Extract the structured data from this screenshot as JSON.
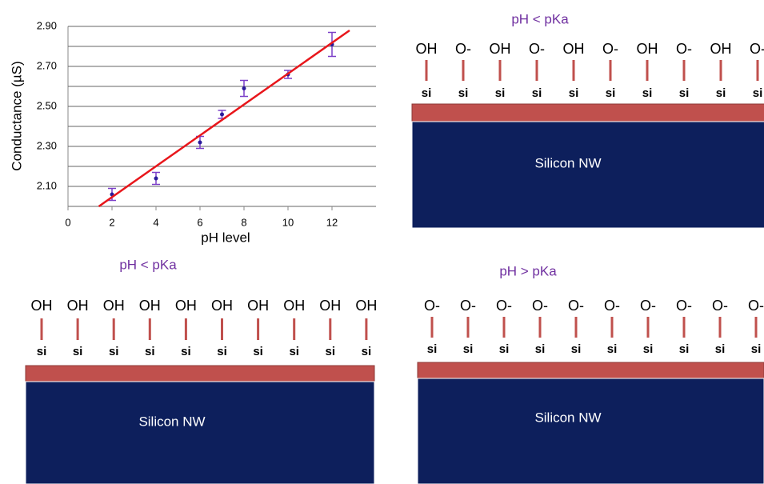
{
  "chart_data": {
    "type": "scatter",
    "x_label": "pH level",
    "y_label": "Conductance (µS)",
    "x": [
      2,
      4,
      6,
      7,
      8,
      10,
      12
    ],
    "values": [
      2.06,
      2.14,
      2.32,
      2.46,
      2.59,
      2.66,
      2.81
    ],
    "errors": [
      0.03,
      0.03,
      0.03,
      0.02,
      0.04,
      0.02,
      0.06
    ],
    "color": "#2a1a9a",
    "error_color": "#7b3fc8",
    "xlim": [
      0,
      14
    ],
    "xticks": [
      0,
      2,
      4,
      6,
      8,
      10,
      12
    ],
    "ylim": [
      2.0,
      2.9
    ],
    "yticks": [
      {
        "value": 2.1,
        "label": "2.10"
      },
      {
        "value": 2.3,
        "label": "2.30"
      },
      {
        "value": 2.5,
        "label": "2.50"
      },
      {
        "value": 2.7,
        "label": "2.70"
      },
      {
        "value": 2.9,
        "label": "2.90"
      }
    ],
    "minor_gridlines": [
      2.0,
      2.2,
      2.4,
      2.6,
      2.8
    ],
    "grid": true,
    "fit": {
      "x": [
        1.4,
        12.8
      ],
      "values": [
        2.0,
        2.88
      ],
      "color": "#e8161b"
    }
  },
  "panels": [
    {
      "title": "pH < pKa",
      "groups": [
        "OH",
        "O-",
        "OH",
        "O-",
        "OH",
        "O-",
        "OH",
        "O-",
        "OH",
        "O-"
      ],
      "sites": [
        "si",
        "si",
        "si",
        "si",
        "si",
        "si",
        "si",
        "si",
        "si",
        "si"
      ],
      "layer_label": "Silicon NW"
    },
    {
      "title": "pH < pKa",
      "groups": [
        "OH",
        "OH",
        "OH",
        "OH",
        "OH",
        "OH",
        "OH",
        "OH",
        "OH",
        "OH"
      ],
      "sites": [
        "si",
        "si",
        "si",
        "si",
        "si",
        "si",
        "si",
        "si",
        "si",
        "si"
      ],
      "layer_label": "Silicon NW"
    },
    {
      "title": "pH > pKa",
      "groups": [
        "O-",
        "O-",
        "O-",
        "O-",
        "O-",
        "O-",
        "O-",
        "O-",
        "O-",
        "O-"
      ],
      "sites": [
        "si",
        "si",
        "si",
        "si",
        "si",
        "si",
        "si",
        "si",
        "si",
        "si"
      ],
      "layer_label": "Silicon NW"
    }
  ]
}
